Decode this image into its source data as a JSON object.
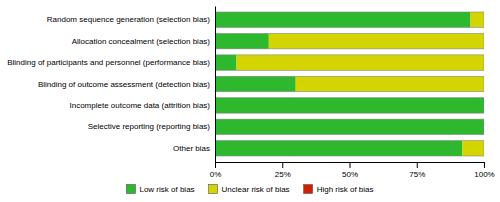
{
  "chart_data": {
    "type": "bar",
    "orientation": "horizontal",
    "stacked": true,
    "categories": [
      "Random sequence generation (selection bias)",
      "Allocation concealment (selection bias)",
      "Blinding of participants and personnel (performance bias)",
      "Blinding of outcome assessment (detection bias)",
      "Incomplete outcome data (attrition bias)",
      "Selective reporting (reporting bias)",
      "Other bias"
    ],
    "series": [
      {
        "name": "Low risk of bias",
        "color": "#2db82d",
        "values": [
          95,
          20,
          8,
          30,
          100,
          100,
          92
        ]
      },
      {
        "name": "Unclear risk of bias",
        "color": "#d4d400",
        "values": [
          5,
          80,
          92,
          70,
          0,
          0,
          8
        ]
      },
      {
        "name": "High risk of bias",
        "color": "#cc2200",
        "values": [
          0,
          0,
          0,
          0,
          0,
          0,
          0
        ]
      }
    ],
    "xlim": [
      0,
      100
    ],
    "xticks": [
      {
        "value": 0,
        "label": "0%"
      },
      {
        "value": 25,
        "label": "25%"
      },
      {
        "value": 50,
        "label": "50%"
      },
      {
        "value": 75,
        "label": "75%"
      },
      {
        "value": 100,
        "label": "100%"
      }
    ],
    "grid": false,
    "legend": "bottom"
  }
}
